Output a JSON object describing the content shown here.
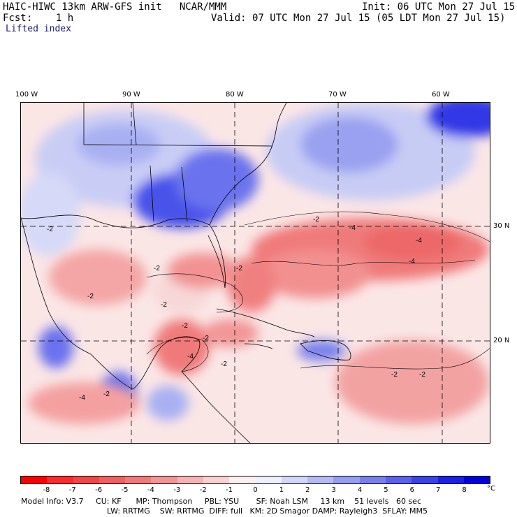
{
  "header": {
    "left_line1": "HAIC-HIWC 13km ARW-GFS init   NCAR/MMM",
    "left_line2": "Fcst:    1 h",
    "right_line1": "Init: 06 UTC Mon 27 Jul 15",
    "right_line2": "Valid: 07 UTC Mon 27 Jul 15 (05 LDT Mon 27 Jul 15)",
    "field_name": "Lifted index"
  },
  "axes": {
    "longitude_labels": [
      "100 W",
      "90 W",
      "80 W",
      "70 W",
      "60 W"
    ],
    "latitude_labels": [
      "30 N",
      "20 N"
    ]
  },
  "contour_labels": [
    "-2",
    "-2",
    "-2",
    "-2",
    "-4",
    "-4",
    "-4",
    "-2",
    "-2",
    "-2",
    "-2",
    "-4",
    "-2",
    "-4",
    "-2",
    "-2",
    "-2"
  ],
  "colorbar": {
    "tick_labels": [
      "-8",
      "-7",
      "-6",
      "-5",
      "-4",
      "-3",
      "-2",
      "-1",
      "0",
      "1",
      "2",
      "3",
      "4",
      "5",
      "6",
      "7",
      "8"
    ],
    "unit": "°C",
    "colors": [
      "#ff0000",
      "#ff2a2a",
      "#f24646",
      "#f06060",
      "#f07a7a",
      "#f39595",
      "#f7b3b3",
      "#fad1d1",
      "#fdf0f0",
      "#eef0fd",
      "#d2d6f8",
      "#b4bbf4",
      "#959ef0",
      "#7880ed",
      "#5a61ea",
      "#3b43e8",
      "#1a20e6",
      "#0000e0"
    ]
  },
  "footer": {
    "line1": "Model Info: V3.7     CU: KF      MP: Thompson     PBL: YSU       SF: Noah LSM     13 km    51 levels   60 sec",
    "line2": "LW: RRTMG    SW: RRTMG  DIFF: full   KM: 2D Smagor DAMP: Rayleigh3  SFLAY: MM5"
  }
}
